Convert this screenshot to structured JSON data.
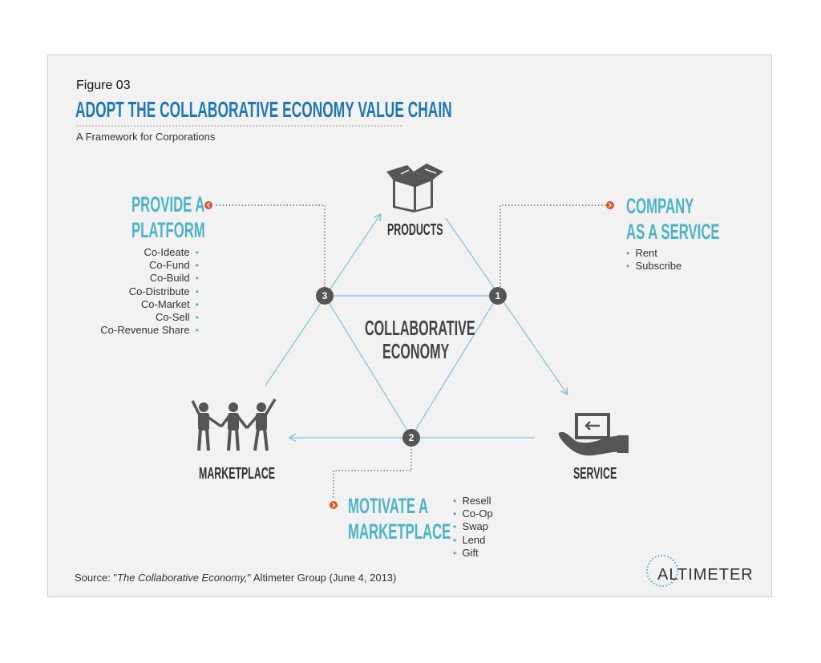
{
  "header": {
    "figure_label": "Figure 03",
    "title": "ADOPT THE COLLABORATIVE ECONOMY VALUE CHAIN",
    "subtitle": "A Framework for Corporations"
  },
  "diagram": {
    "center_line1": "COLLABORATIVE",
    "center_line2": "ECONOMY",
    "nodes": {
      "products": "PRODUCTS",
      "marketplace": "MARKETPLACE",
      "service": "SERVICE"
    },
    "steps": [
      "1",
      "2",
      "3"
    ]
  },
  "platform": {
    "heading_line1": "PROVIDE A",
    "heading_line2": "PLATFORM",
    "items": [
      "Co-Ideate",
      "Co-Fund",
      "Co-Build",
      "Co-Distribute",
      "Co-Market",
      "Co-Sell",
      "Co-Revenue Share"
    ]
  },
  "service": {
    "heading_line1": "COMPANY",
    "heading_line2": "AS A SERVICE",
    "items": [
      "Rent",
      "Subscribe"
    ]
  },
  "marketplace": {
    "heading_line1": "MOTIVATE A",
    "heading_line2": "MARKETPLACE",
    "items": [
      "Resell",
      "Co-Op",
      "Swap",
      "Lend",
      "Gift"
    ]
  },
  "footer": {
    "source_prefix": "Source: \"",
    "source_title": "The Collaborative Economy,",
    "source_suffix": "\" Altimeter Group (June 4, 2013)",
    "logo": "ALTIMETER"
  },
  "colors": {
    "title_blue": "#1f77b4",
    "teal": "#4db3c8",
    "line_blue": "#7ec3dc",
    "marker_orange": "#e0512a",
    "icon_gray": "#555555"
  }
}
